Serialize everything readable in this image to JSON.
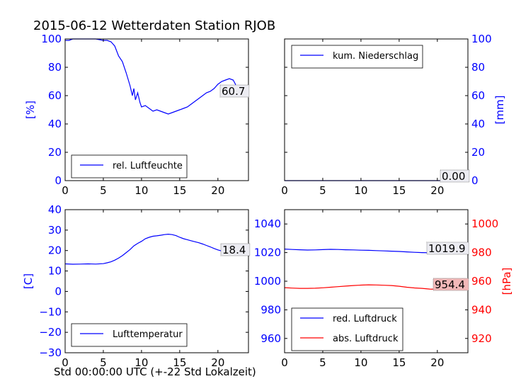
{
  "title": "2015-06-12 Wetterdaten Station RJOB",
  "xlabel": "Std 00:00:00 UTC (+-22 Std Lokalzeit)",
  "colors": {
    "blue": "#0000ff",
    "red": "#ff0000",
    "black": "#000000"
  },
  "chart_data": [
    {
      "type": "line",
      "panel": "top-left",
      "ylabel": "[%]",
      "xlim": [
        0,
        24
      ],
      "ylim": [
        0,
        100
      ],
      "xticks": [
        0,
        5,
        10,
        15,
        20
      ],
      "yticks": [
        0,
        20,
        40,
        60,
        80,
        100
      ],
      "legend": "lower-left",
      "last_value_label": "60.7",
      "series": [
        {
          "name": "rel. Luftfeuchte",
          "color": "#0000ff",
          "x": [
            0,
            0.5,
            1,
            2,
            3,
            4,
            5,
            5.5,
            6,
            6.5,
            7,
            7.5,
            8,
            8.5,
            8.8,
            9,
            9.2,
            9.5,
            9.8,
            10,
            10.5,
            11,
            11.5,
            12,
            12.5,
            13,
            13.5,
            14,
            14.5,
            15,
            15.5,
            16,
            16.5,
            17,
            17.5,
            18,
            18.5,
            19,
            19.5,
            20,
            20.5,
            21,
            21.5,
            22,
            22.5,
            23,
            23.5,
            24
          ],
          "y": [
            99,
            99,
            100,
            100,
            100,
            100,
            99,
            99,
            98,
            95,
            88,
            84,
            76,
            67,
            60,
            65,
            57,
            62,
            55,
            52,
            53,
            51,
            49,
            50,
            49,
            48,
            47,
            48,
            49,
            50,
            51,
            52,
            54,
            56,
            58,
            60,
            62,
            63,
            65,
            68,
            70,
            71,
            72,
            71,
            66,
            62,
            61,
            60.7
          ]
        }
      ]
    },
    {
      "type": "line",
      "panel": "top-right",
      "ylabel": "[mm]",
      "xlim": [
        0,
        24
      ],
      "ylim": [
        0,
        100
      ],
      "xticks": [
        0,
        5,
        10,
        15,
        20
      ],
      "yticks": [
        0,
        20,
        40,
        60,
        80,
        100
      ],
      "legend": "top-left",
      "last_value_label": "0.00",
      "series": [
        {
          "name": "kum. Niederschlag",
          "color": "#0000ff",
          "x": [
            0,
            24
          ],
          "y": [
            0,
            0
          ]
        }
      ]
    },
    {
      "type": "line",
      "panel": "bottom-left",
      "ylabel": "[C]",
      "xlim": [
        0,
        24
      ],
      "ylim": [
        -30,
        40
      ],
      "xticks": [
        0,
        5,
        10,
        15,
        20
      ],
      "yticks": [
        -30,
        -20,
        -10,
        0,
        10,
        20,
        30,
        40
      ],
      "legend": "lower-left",
      "last_value_label": "18.4",
      "series": [
        {
          "name": "Lufttemperatur",
          "color": "#0000ff",
          "x": [
            0,
            1,
            2,
            3,
            4,
            5,
            5.5,
            6,
            6.5,
            7,
            7.5,
            8,
            8.5,
            9,
            9.5,
            10,
            10.5,
            11,
            11.5,
            12,
            12.5,
            13,
            13.5,
            14,
            14.5,
            15,
            15.5,
            16,
            16.5,
            17,
            17.5,
            18,
            18.5,
            19,
            19.5,
            20,
            20.5,
            21,
            21.5,
            22,
            23,
            24
          ],
          "y": [
            13.5,
            13.3,
            13.4,
            13.5,
            13.4,
            13.6,
            14,
            14.5,
            15.3,
            16.3,
            17.5,
            19,
            20.5,
            22.3,
            23.5,
            24.5,
            25.8,
            26.5,
            27,
            27.2,
            27.5,
            27.8,
            28,
            27.8,
            27.3,
            26.5,
            25.8,
            25.3,
            24.8,
            24.3,
            23.8,
            23.2,
            22.5,
            21.8,
            21,
            20.3,
            19.8,
            19.4,
            19.1,
            18.9,
            18.6,
            18.4
          ]
        }
      ]
    },
    {
      "type": "line",
      "panel": "bottom-right",
      "ylabel_right": "[hPa]",
      "xlim": [
        0,
        24
      ],
      "ylim_left": [
        950,
        1050
      ],
      "ylim_right": [
        910,
        1010
      ],
      "xticks": [
        0,
        5,
        10,
        15,
        20
      ],
      "yticks_left": [
        960,
        980,
        1000,
        1020,
        1040
      ],
      "yticks_right": [
        920,
        940,
        960,
        980,
        1000
      ],
      "legend": "lower-left",
      "last_value_labels": [
        "1019.9",
        "954.4"
      ],
      "series": [
        {
          "name": "red. Luftdruck",
          "color": "#0000ff",
          "axis": "left",
          "x": [
            0,
            1,
            2,
            3,
            4,
            5,
            6,
            7,
            8,
            9,
            10,
            11,
            12,
            13,
            14,
            15,
            16,
            17,
            18,
            19,
            20,
            21,
            22,
            23,
            24
          ],
          "y": [
            1022.5,
            1022.2,
            1022,
            1021.8,
            1021.9,
            1022.1,
            1022.3,
            1022.2,
            1022,
            1021.9,
            1021.7,
            1021.6,
            1021.4,
            1021.2,
            1021,
            1020.8,
            1020.5,
            1020.2,
            1020,
            1019.9,
            1019.8,
            1019.9,
            1020,
            1019.9,
            1019.9
          ]
        },
        {
          "name": "abs. Luftdruck",
          "color": "#ff0000",
          "axis": "right",
          "x": [
            0,
            1,
            2,
            3,
            4,
            5,
            6,
            7,
            8,
            9,
            10,
            11,
            12,
            13,
            14,
            15,
            16,
            17,
            18,
            19,
            20,
            21,
            22,
            23,
            24
          ],
          "y": [
            955.5,
            955.2,
            955,
            955,
            955.1,
            955.4,
            955.8,
            956.2,
            956.6,
            957,
            957.3,
            957.5,
            957.4,
            957.2,
            957,
            956.5,
            955.8,
            955.3,
            955,
            954.5,
            954.3,
            954.4,
            954.6,
            954.5,
            954.4
          ]
        }
      ]
    }
  ]
}
